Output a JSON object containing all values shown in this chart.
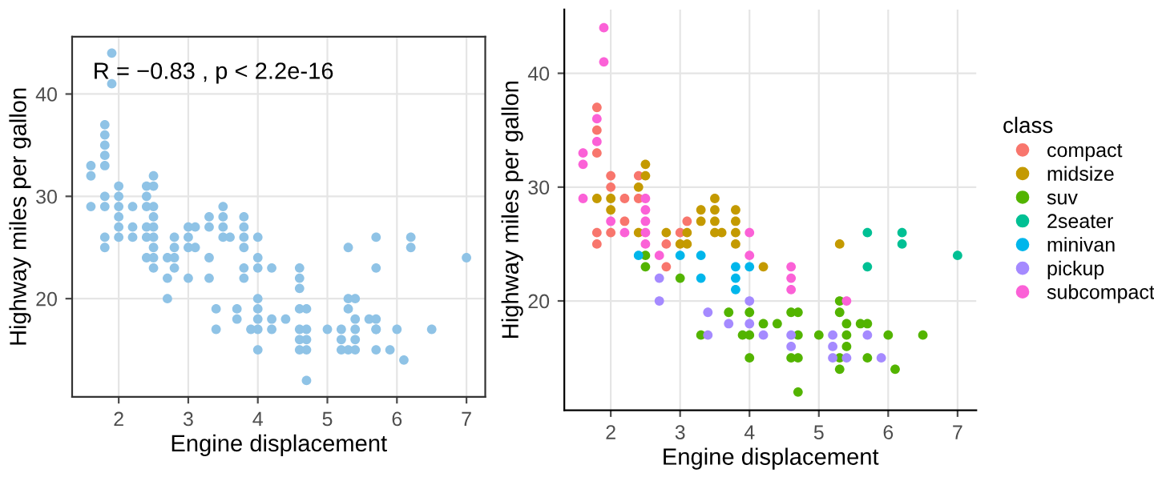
{
  "chart_data": [
    {
      "type": "scatter",
      "xlabel": "Engine displacement",
      "ylabel": "Highway miles per gallon",
      "annotations": [
        "R = −0.83 , p < 2.2e-16"
      ],
      "xlim": [
        1.33,
        7.27
      ],
      "ylim": [
        10.4,
        45.6
      ],
      "xticks": [
        2,
        3,
        4,
        5,
        6,
        7
      ],
      "yticks": [
        20,
        30,
        40
      ],
      "grid": true,
      "marker": "circle",
      "legend": false,
      "series": [
        {
          "color": "#8fc3e6",
          "x": [
            1.6,
            1.6,
            1.6,
            1.8,
            1.8,
            1.8,
            1.8,
            1.8,
            1.8,
            1.8,
            1.8,
            1.8,
            1.9,
            1.9,
            2.0,
            2.0,
            2.0,
            2.0,
            2.0,
            2.0,
            2.2,
            2.2,
            2.2,
            2.4,
            2.4,
            2.4,
            2.4,
            2.4,
            2.4,
            2.5,
            2.5,
            2.5,
            2.5,
            2.5,
            2.5,
            2.5,
            2.5,
            2.5,
            2.7,
            2.7,
            2.7,
            2.8,
            2.8,
            2.8,
            2.8,
            3.0,
            3.0,
            3.0,
            3.0,
            3.1,
            3.1,
            3.3,
            3.3,
            3.3,
            3.3,
            3.4,
            3.4,
            3.5,
            3.5,
            3.5,
            3.5,
            3.6,
            3.7,
            3.7,
            3.8,
            3.8,
            3.8,
            3.8,
            3.8,
            3.8,
            3.9,
            4.0,
            4.0,
            4.0,
            4.0,
            4.0,
            4.0,
            4.0,
            4.0,
            4.2,
            4.2,
            4.2,
            4.4,
            4.6,
            4.6,
            4.6,
            4.6,
            4.6,
            4.6,
            4.6,
            4.7,
            4.7,
            4.7,
            4.7,
            4.7,
            5.0,
            5.2,
            5.2,
            5.2,
            5.3,
            5.3,
            5.3,
            5.3,
            5.4,
            5.4,
            5.4,
            5.4,
            5.4,
            5.6,
            5.7,
            5.7,
            5.7,
            5.7,
            5.7,
            5.7,
            5.9,
            6.0,
            6.1,
            6.2,
            6.2,
            6.5,
            7.0
          ],
          "values": [
            33,
            32,
            29,
            37,
            36,
            35,
            34,
            33,
            29,
            26,
            25,
            30,
            44,
            41,
            31,
            30,
            29,
            28,
            27,
            26,
            29,
            27,
            26,
            31,
            30,
            29,
            27,
            26,
            24,
            32,
            31,
            29,
            28,
            27,
            26,
            25,
            24,
            23,
            24,
            22,
            20,
            26,
            25,
            24,
            23,
            27,
            26,
            25,
            22,
            27,
            25,
            28,
            27,
            24,
            22,
            19,
            17,
            29,
            28,
            27,
            26,
            26,
            19,
            18,
            28,
            27,
            26,
            25,
            23,
            22,
            17,
            26,
            24,
            23,
            20,
            19,
            18,
            17,
            15,
            23,
            18,
            17,
            18,
            23,
            22,
            21,
            19,
            17,
            16,
            15,
            19,
            17,
            16,
            15,
            12,
            17,
            17,
            16,
            15,
            25,
            20,
            19,
            15,
            20,
            18,
            17,
            16,
            15,
            18,
            26,
            23,
            18,
            17,
            15,
            17,
            15,
            17,
            14,
            26,
            25,
            17,
            24
          ]
        }
      ]
    },
    {
      "type": "scatter",
      "xlabel": "Engine displacement",
      "ylabel": "Highway miles per gallon",
      "xlim": [
        1.33,
        7.27
      ],
      "ylim": [
        10.4,
        45.6
      ],
      "xticks": [
        2,
        3,
        4,
        5,
        6,
        7
      ],
      "yticks": [
        20,
        30,
        40
      ],
      "grid": true,
      "marker": "circle",
      "legend": "right",
      "legend_title": "class",
      "series": [
        {
          "name": "compact",
          "color": "#f8766d",
          "x": [
            1.8,
            1.8,
            1.8,
            1.8,
            1.8,
            2.0,
            2.0,
            2.0,
            2.2,
            2.2,
            2.4,
            2.4,
            2.8,
            2.8,
            3.0,
            3.1
          ],
          "values": [
            37,
            35,
            33,
            26,
            25,
            31,
            30,
            26,
            29,
            27,
            31,
            29,
            25,
            23,
            26,
            27
          ]
        },
        {
          "name": "midsize",
          "color": "#c49a00",
          "x": [
            1.8,
            2.0,
            2.0,
            2.4,
            2.4,
            2.5,
            2.5,
            2.8,
            3.0,
            3.1,
            3.1,
            3.3,
            3.3,
            3.5,
            3.5,
            3.5,
            3.5,
            3.6,
            3.8,
            3.8,
            3.8,
            3.8,
            4.2,
            5.3
          ],
          "values": [
            29,
            29,
            28,
            30,
            26,
            32,
            31,
            26,
            25,
            26,
            25,
            28,
            27,
            29,
            28,
            27,
            26,
            26,
            28,
            27,
            26,
            25,
            23,
            25
          ]
        },
        {
          "name": "suv",
          "color": "#53b400",
          "x": [
            2.5,
            2.5,
            3.0,
            3.3,
            3.7,
            3.9,
            4.0,
            4.0,
            4.0,
            4.2,
            4.4,
            4.6,
            4.6,
            4.7,
            4.7,
            4.7,
            4.7,
            5.0,
            5.3,
            5.3,
            5.3,
            5.3,
            5.4,
            5.4,
            5.4,
            5.6,
            5.7,
            5.7,
            6.0,
            6.1,
            6.5
          ],
          "values": [
            24,
            23,
            22,
            17,
            19,
            17,
            19,
            17,
            15,
            18,
            18,
            19,
            15,
            19,
            17,
            15,
            12,
            17,
            20,
            19,
            15,
            14,
            18,
            17,
            16,
            18,
            18,
            15,
            17,
            14,
            17
          ]
        },
        {
          "name": "2seater",
          "color": "#00c094",
          "x": [
            5.7,
            5.7,
            6.2,
            6.2,
            7.0
          ],
          "values": [
            26,
            23,
            26,
            25,
            24
          ]
        },
        {
          "name": "minivan",
          "color": "#00b6eb",
          "x": [
            2.4,
            3.0,
            3.3,
            3.3,
            3.8,
            3.8,
            3.8,
            4.0
          ],
          "values": [
            24,
            24,
            24,
            22,
            23,
            22,
            21,
            23
          ]
        },
        {
          "name": "pickup",
          "color": "#a58aff",
          "x": [
            2.7,
            2.7,
            3.4,
            3.4,
            3.7,
            4.0,
            4.0,
            4.2,
            4.6,
            4.6,
            5.2,
            5.2,
            5.2,
            5.4,
            5.7,
            5.9
          ],
          "values": [
            22,
            20,
            19,
            17,
            18,
            20,
            18,
            17,
            17,
            16,
            17,
            16,
            15,
            15,
            17,
            15
          ]
        },
        {
          "name": "subcompact",
          "color": "#fb61d7",
          "x": [
            1.9,
            1.9,
            1.8,
            1.8,
            1.6,
            1.6,
            1.6,
            2.0,
            2.2,
            2.5,
            2.5,
            2.5,
            2.5,
            2.5,
            2.7,
            4.0,
            4.0,
            4.6,
            4.6,
            4.6,
            5.4
          ],
          "values": [
            44,
            41,
            36,
            34,
            33,
            32,
            29,
            27,
            26,
            29,
            28,
            27,
            26,
            25,
            24,
            26,
            24,
            23,
            22,
            21,
            20
          ]
        }
      ]
    }
  ]
}
